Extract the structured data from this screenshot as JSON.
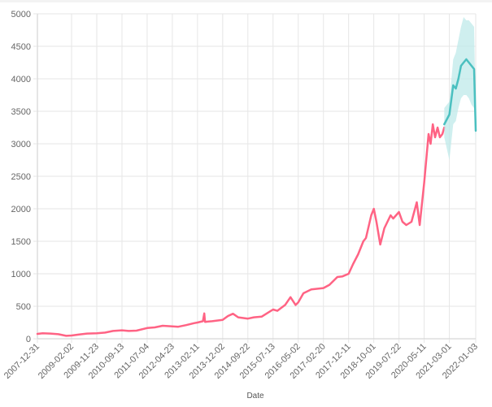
{
  "chart_data": {
    "type": "line",
    "title": "",
    "xlabel": "Date",
    "ylabel": "",
    "ylim": [
      0,
      5000
    ],
    "grid": true,
    "yticks": [
      0,
      500,
      1000,
      1500,
      2000,
      2500,
      3000,
      3500,
      4000,
      4500,
      5000
    ],
    "xticks": [
      "2007-12-31",
      "2009-02-02",
      "2009-11-23",
      "2010-09-13",
      "2011-07-04",
      "2012-04-23",
      "2013-02-11",
      "2013-12-02",
      "2014-09-22",
      "2015-07-13",
      "2016-05-02",
      "2017-02-20",
      "2017-12-11",
      "2018-10-01",
      "2019-07-22",
      "2020-05-11",
      "2021-03-01",
      "2022-01-03"
    ],
    "colors": {
      "history": "#ff6384",
      "forecast": "#4bc0c0",
      "band": "#bfe9e9",
      "grid": "#e6e6e6"
    },
    "series": [
      {
        "role": "history",
        "points": [
          [
            "2007-12-31",
            75
          ],
          [
            "2008-03-01",
            85
          ],
          [
            "2008-06-01",
            80
          ],
          [
            "2008-09-01",
            70
          ],
          [
            "2008-12-01",
            45
          ],
          [
            "2009-02-02",
            50
          ],
          [
            "2009-05-01",
            65
          ],
          [
            "2009-08-01",
            80
          ],
          [
            "2009-11-23",
            85
          ],
          [
            "2010-03-01",
            95
          ],
          [
            "2010-06-01",
            120
          ],
          [
            "2010-09-13",
            130
          ],
          [
            "2010-12-01",
            120
          ],
          [
            "2011-03-01",
            125
          ],
          [
            "2011-07-04",
            165
          ],
          [
            "2011-10-01",
            175
          ],
          [
            "2012-01-01",
            200
          ],
          [
            "2012-04-23",
            190
          ],
          [
            "2012-07-01",
            185
          ],
          [
            "2012-10-01",
            210
          ],
          [
            "2013-01-01",
            240
          ],
          [
            "2013-02-11",
            250
          ],
          [
            "2013-04-15",
            270
          ],
          [
            "2013-05-01",
            390
          ],
          [
            "2013-05-10",
            260
          ],
          [
            "2013-08-01",
            270
          ],
          [
            "2013-12-02",
            290
          ],
          [
            "2014-02-01",
            350
          ],
          [
            "2014-04-01",
            385
          ],
          [
            "2014-06-01",
            330
          ],
          [
            "2014-09-22",
            310
          ],
          [
            "2014-12-01",
            330
          ],
          [
            "2015-03-01",
            340
          ],
          [
            "2015-07-13",
            450
          ],
          [
            "2015-09-01",
            430
          ],
          [
            "2015-12-01",
            520
          ],
          [
            "2016-02-01",
            640
          ],
          [
            "2016-04-01",
            520
          ],
          [
            "2016-05-02",
            560
          ],
          [
            "2016-07-01",
            700
          ],
          [
            "2016-10-01",
            760
          ],
          [
            "2017-02-20",
            780
          ],
          [
            "2017-05-01",
            830
          ],
          [
            "2017-08-01",
            950
          ],
          [
            "2017-10-01",
            960
          ],
          [
            "2017-12-11",
            1000
          ],
          [
            "2018-02-01",
            1150
          ],
          [
            "2018-04-01",
            1300
          ],
          [
            "2018-06-01",
            1500
          ],
          [
            "2018-07-01",
            1550
          ],
          [
            "2018-09-01",
            1900
          ],
          [
            "2018-10-01",
            2000
          ],
          [
            "2018-11-01",
            1800
          ],
          [
            "2018-12-15",
            1450
          ],
          [
            "2019-02-01",
            1700
          ],
          [
            "2019-04-15",
            1900
          ],
          [
            "2019-05-15",
            1850
          ],
          [
            "2019-07-22",
            1950
          ],
          [
            "2019-09-01",
            1800
          ],
          [
            "2019-10-15",
            1750
          ],
          [
            "2019-12-15",
            1800
          ],
          [
            "2020-02-15",
            2100
          ],
          [
            "2020-03-20",
            1750
          ],
          [
            "2020-05-11",
            2400
          ],
          [
            "2020-07-01",
            3150
          ],
          [
            "2020-07-25",
            3000
          ],
          [
            "2020-08-20",
            3300
          ],
          [
            "2020-09-15",
            3100
          ],
          [
            "2020-10-15",
            3250
          ],
          [
            "2020-11-10",
            3100
          ],
          [
            "2020-12-10",
            3150
          ],
          [
            "2021-01-01",
            3250
          ]
        ]
      },
      {
        "role": "forecast",
        "points": [
          [
            "2021-01-01",
            3300
          ],
          [
            "2021-03-01",
            3450
          ],
          [
            "2021-04-15",
            3900
          ],
          [
            "2021-05-15",
            3850
          ],
          [
            "2021-06-15",
            4000
          ],
          [
            "2021-07-15",
            4200
          ],
          [
            "2021-08-15",
            4250
          ],
          [
            "2021-09-15",
            4300
          ],
          [
            "2021-10-15",
            4250
          ],
          [
            "2021-11-15",
            4200
          ],
          [
            "2021-12-15",
            4150
          ],
          [
            "2022-01-03",
            3200
          ]
        ],
        "lower": [
          3100,
          2750,
          3300,
          3350,
          3550,
          3700,
          3750,
          3750,
          3700,
          3600,
          3550,
          3000
        ],
        "upper": [
          3550,
          3650,
          4300,
          4400,
          4600,
          4800,
          4950,
          4900,
          4900,
          4850,
          4800,
          3400
        ]
      }
    ]
  }
}
